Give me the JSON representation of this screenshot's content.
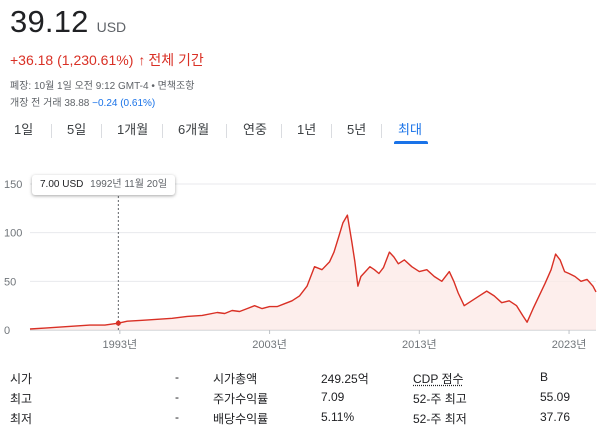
{
  "quote": {
    "price": "39.12",
    "currency": "USD",
    "change": "+36.18 (1,230.61%)",
    "change_arrow": "↑",
    "change_period": "전체 기간",
    "meta_close": "폐장: 10월 1일 오전 9:12 GMT-4 • 면책조항",
    "meta_premarket_label": "개장 전 거래 38.88",
    "meta_premarket_change": "−0.24 (0.61%)"
  },
  "tabs": [
    {
      "label": "1일",
      "active": false
    },
    {
      "label": "5일",
      "active": false
    },
    {
      "label": "1개월",
      "active": false
    },
    {
      "label": "6개월",
      "active": false
    },
    {
      "label": "연중",
      "active": false
    },
    {
      "label": "1년",
      "active": false
    },
    {
      "label": "5년",
      "active": false
    },
    {
      "label": "최대",
      "active": true
    }
  ],
  "tooltip": {
    "value": "7.00 USD",
    "date": "1992년 11월 20일"
  },
  "chart_data": {
    "type": "area",
    "y_ticks": [
      "150",
      "100",
      "50",
      "0"
    ],
    "y_tick_values": [
      150,
      100,
      50,
      0
    ],
    "x_ticks": [
      "1993년",
      "2003년",
      "2013년",
      "2023년"
    ],
    "x_tick_values": [
      1993,
      2003,
      2013,
      2023
    ],
    "ylim": [
      0,
      150
    ],
    "xlim": [
      1987,
      2024.8
    ],
    "line_color": "#d93025",
    "fill_color": "#fce8e6",
    "cursor_x": 1992.9,
    "series": [
      {
        "x": [
          1987.0,
          1988.0,
          1989.0,
          1990.0,
          1991.0,
          1992.0,
          1992.9,
          1993.5,
          1994.5,
          1995.5,
          1996.5,
          1997.5,
          1998.5,
          1999.5,
          2000.0,
          2000.5,
          2001.0,
          2001.5,
          2002.0,
          2002.5,
          2003.0,
          2003.5,
          2004.0,
          2004.5,
          2005.0,
          2005.5,
          2006.0,
          2006.5,
          2007.0,
          2007.3,
          2007.6,
          2007.9,
          2008.2,
          2008.5,
          2008.7,
          2008.9,
          2009.1,
          2009.4,
          2009.7,
          2010.0,
          2010.3,
          2010.6,
          2011.0,
          2011.3,
          2011.6,
          2012.0,
          2012.5,
          2013.0,
          2013.5,
          2014.0,
          2014.5,
          2015.0,
          2015.3,
          2015.6,
          2016.0,
          2016.5,
          2017.0,
          2017.5,
          2018.0,
          2018.5,
          2019.0,
          2019.5,
          2019.9,
          2020.2,
          2020.6,
          2021.0,
          2021.4,
          2021.8,
          2022.1,
          2022.4,
          2022.7,
          2023.0,
          2023.4,
          2023.8,
          2024.2,
          2024.6,
          2024.8
        ],
        "y": [
          1,
          2,
          3,
          4,
          5,
          5,
          7,
          9,
          10,
          11,
          12,
          14,
          15,
          18,
          17,
          20,
          19,
          22,
          25,
          22,
          24,
          24,
          27,
          30,
          35,
          45,
          65,
          62,
          70,
          80,
          95,
          110,
          118,
          90,
          70,
          45,
          55,
          60,
          65,
          62,
          58,
          64,
          80,
          75,
          68,
          72,
          65,
          60,
          62,
          55,
          50,
          60,
          50,
          38,
          25,
          30,
          35,
          40,
          35,
          28,
          30,
          25,
          15,
          8,
          22,
          35,
          48,
          62,
          78,
          72,
          60,
          58,
          55,
          50,
          52,
          45,
          39.12
        ]
      }
    ]
  },
  "stats": [
    {
      "label1": "시가",
      "value1": "-",
      "label2": "시가총액",
      "value2": "249.25억",
      "label3": "CDP 점수",
      "value3": "B"
    },
    {
      "label1": "최고",
      "value1": "-",
      "label2": "주가수익률",
      "value2": "7.09",
      "label3": "52-주 최고",
      "value3": "55.09"
    },
    {
      "label1": "최저",
      "value1": "-",
      "label2": "배당수익률",
      "value2": "5.11%",
      "label3": "52-주 최저",
      "value3": "37.76"
    }
  ]
}
